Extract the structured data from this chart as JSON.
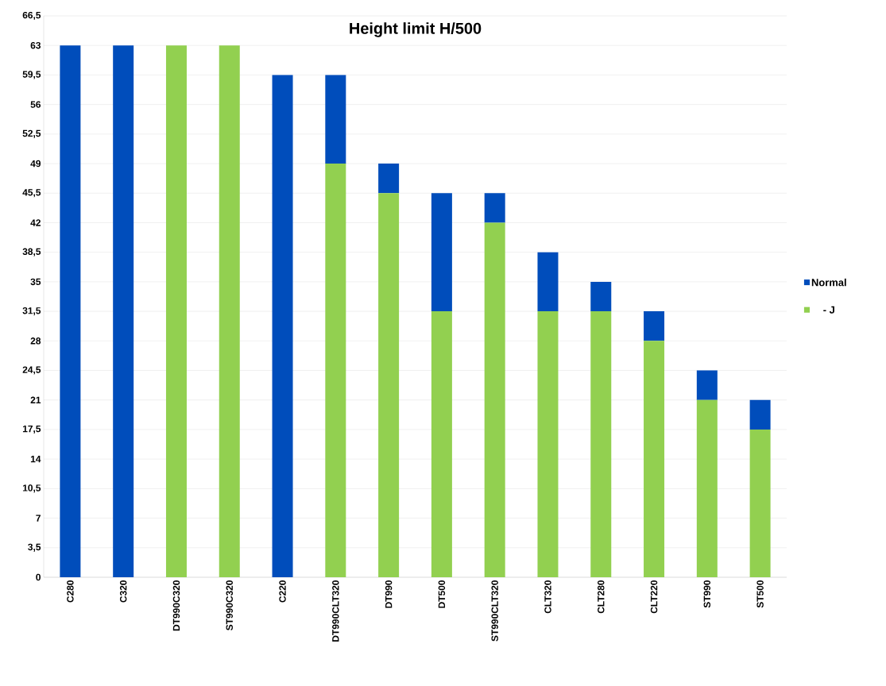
{
  "chart_data": {
    "type": "bar",
    "title": "Height limit H/500",
    "stacked": true,
    "categories": [
      "C280",
      "C320",
      "DT990C320",
      "ST990C320",
      "C220",
      "DT990CLT320",
      "DT990",
      "DT500",
      "ST990CLT320",
      "CLT320",
      "CLT280",
      "CLT220",
      "ST990",
      "ST500"
    ],
    "series": [
      {
        "name": "- J",
        "color": "#92d050",
        "values": [
          0,
          0,
          63,
          63,
          0,
          49,
          45.5,
          31.5,
          42,
          31.5,
          31.5,
          28,
          21,
          17.5
        ]
      },
      {
        "name": "Normal",
        "color": "#004dbb",
        "values": [
          63,
          63,
          0,
          0,
          59.5,
          10.5,
          3.5,
          14,
          3.5,
          7,
          3.5,
          3.5,
          3.5,
          3.5
        ]
      }
    ],
    "ylim": [
      0,
      66.5
    ],
    "yticks": [
      0,
      {
        "value": 3.5,
        "label": "3,5"
      },
      7,
      {
        "value": 10.5,
        "label": "10,5"
      },
      14,
      {
        "value": 17.5,
        "label": "17,5"
      },
      21,
      {
        "value": 24.5,
        "label": "24,5"
      },
      28,
      {
        "value": 31.5,
        "label": "31,5"
      },
      35,
      {
        "value": 38.5,
        "label": "38,5"
      },
      42,
      {
        "value": 45.5,
        "label": "45,5"
      },
      49,
      {
        "value": 52.5,
        "label": "52,5"
      },
      56,
      {
        "value": 59.5,
        "label": "59,5"
      },
      63,
      {
        "value": 66.5,
        "label": "66,5"
      }
    ],
    "grid": "y",
    "legend": "right"
  }
}
